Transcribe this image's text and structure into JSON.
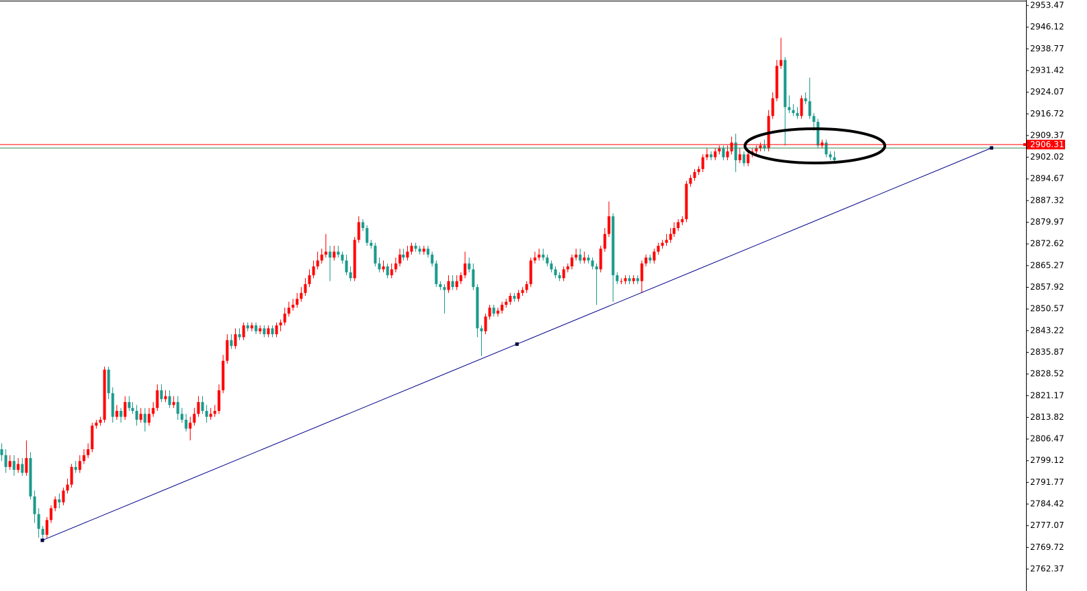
{
  "chart_data": {
    "type": "candlestick",
    "up_color": "#ff0000",
    "down_color": "#1a9a8c",
    "xlim": [
      -0.33,
      249.8
    ],
    "ylim": [
      2757.49,
      2955.33
    ],
    "yticks": [
      2953.47,
      2946.12,
      2938.77,
      2931.42,
      2924.07,
      2916.72,
      2909.37,
      2902.02,
      2894.67,
      2887.32,
      2879.97,
      2872.62,
      2865.27,
      2857.92,
      2850.57,
      2843.22,
      2835.87,
      2828.52,
      2821.17,
      2813.82,
      2806.47,
      2799.12,
      2791.77,
      2784.42,
      2777.07,
      2769.72,
      2762.37
    ],
    "open": [
      2803,
      2801,
      2797,
      2799,
      2796,
      2798,
      2795,
      2800,
      2787,
      2781,
      2776,
      2774,
      2779,
      2783,
      2786,
      2785,
      2789,
      2791,
      2797,
      2796,
      2799,
      2801,
      2803,
      2811,
      2812,
      2813,
      2830,
      2822,
      2814,
      2816,
      2814,
      2819,
      2817,
      2816,
      2813,
      2815,
      2812,
      2815,
      2817,
      2823,
      2820,
      2821,
      2818,
      2819,
      2815,
      2813,
      2810,
      2812,
      2815,
      2819,
      2816,
      2814,
      2815,
      2816,
      2823,
      2833,
      2840,
      2838,
      2842,
      2841,
      2845,
      2844,
      2845,
      2843,
      2844,
      2842,
      2844,
      2842,
      2845,
      2846,
      2849,
      2851,
      2852,
      2854,
      2856,
      2859,
      2862,
      2865,
      2867,
      2869,
      2870,
      2868,
      2870,
      2869,
      2867,
      2863,
      2861,
      2874,
      2880,
      2878,
      2873,
      2872,
      2866,
      2864,
      2865,
      2862,
      2864,
      2866,
      2869,
      2868,
      2870,
      2872,
      2871,
      2870,
      2871,
      2869,
      2866,
      2859,
      2858,
      2857,
      2860,
      2858,
      2860,
      2862,
      2866,
      2864,
      2858,
      2844,
      2843,
      2848,
      2851,
      2849,
      2850,
      2852,
      2853,
      2855,
      2854,
      2856,
      2857,
      2859,
      2867,
      2868,
      2869,
      2868,
      2866,
      2864,
      2862,
      2861,
      2864,
      2865,
      2868,
      2869,
      2867,
      2868,
      2867,
      2865,
      2864,
      2871,
      2876,
      2882,
      2862,
      2860,
      2860,
      2861,
      2860,
      2861,
      2860,
      2866,
      2868,
      2867,
      2870,
      2872,
      2873,
      2874,
      2876,
      2878,
      2880,
      2881,
      2893,
      2895,
      2897,
      2898,
      2902,
      2903,
      2902,
      2904,
      2905,
      2902,
      2904,
      2907,
      2901,
      2903,
      2900,
      2903,
      2904,
      2905,
      2906,
      2905,
      2916,
      2922,
      2933,
      2935,
      2919,
      2918,
      2917,
      2916,
      2922,
      2921,
      2916,
      2914,
      2906,
      2907,
      2903,
      2902
    ],
    "high": [
      2805,
      2803,
      2801,
      2801,
      2800,
      2800,
      2806,
      2802,
      2789,
      2783,
      2777,
      2780,
      2784,
      2787,
      2788,
      2790,
      2793,
      2798,
      2799,
      2801,
      2803,
      2805,
      2812,
      2813,
      2814,
      2831,
      2831,
      2824,
      2818,
      2817,
      2821,
      2821,
      2819,
      2818,
      2817,
      2817,
      2817,
      2819,
      2825,
      2825,
      2823,
      2823,
      2821,
      2821,
      2817,
      2815,
      2814,
      2817,
      2821,
      2821,
      2818,
      2817,
      2818,
      2825,
      2835,
      2842,
      2842,
      2844,
      2844,
      2846,
      2846,
      2846,
      2846,
      2845,
      2845,
      2845,
      2845,
      2846,
      2847,
      2851,
      2853,
      2854,
      2856,
      2858,
      2861,
      2864,
      2867,
      2870,
      2871,
      2876,
      2872,
      2872,
      2872,
      2870,
      2869,
      2865,
      2875,
      2882,
      2881,
      2879,
      2874,
      2873,
      2868,
      2867,
      2866,
      2866,
      2868,
      2871,
      2871,
      2872,
      2873,
      2873,
      2872,
      2872,
      2872,
      2870,
      2867,
      2860,
      2859,
      2862,
      2862,
      2862,
      2863,
      2870,
      2868,
      2866,
      2859,
      2845,
      2849,
      2852,
      2852,
      2851,
      2853,
      2854,
      2856,
      2856,
      2857,
      2858,
      2860,
      2868,
      2870,
      2871,
      2871,
      2869,
      2867,
      2865,
      2863,
      2865,
      2866,
      2869,
      2871,
      2871,
      2870,
      2869,
      2868,
      2866,
      2872,
      2878,
      2887,
      2883,
      2863,
      2861,
      2862,
      2862,
      2862,
      2862,
      2867,
      2869,
      2869,
      2871,
      2873,
      2874,
      2876,
      2878,
      2880,
      2881,
      2882,
      2894,
      2896,
      2898,
      2899,
      2903,
      2905,
      2904,
      2905,
      2906,
      2906,
      2906,
      2909,
      2910,
      2905,
      2904,
      2904,
      2905,
      2906,
      2907,
      2908,
      2918,
      2924,
      2935,
      2942.5,
      2936,
      2923,
      2920,
      2919,
      2923,
      2924,
      2929,
      2917,
      2915,
      2908,
      2908,
      2904,
      2904
    ],
    "low": [
      2799,
      2795,
      2796,
      2794,
      2795,
      2794,
      2794,
      2786,
      2778,
      2773,
      2772,
      2773,
      2778,
      2782,
      2783,
      2784,
      2788,
      2790,
      2795,
      2795,
      2798,
      2800,
      2802,
      2810,
      2811,
      2812,
      2820,
      2812,
      2813,
      2812,
      2813,
      2816,
      2815,
      2811,
      2812,
      2809,
      2811,
      2814,
      2816,
      2819,
      2819,
      2817,
      2817,
      2813,
      2812,
      2809,
      2806,
      2811,
      2814,
      2815,
      2812,
      2813,
      2814,
      2815,
      2822,
      2832,
      2837,
      2837,
      2840,
      2840,
      2843,
      2843,
      2842,
      2842,
      2841,
      2841,
      2841,
      2841,
      2843,
      2845,
      2848,
      2850,
      2851,
      2853,
      2855,
      2858,
      2861,
      2864,
      2866,
      2868,
      2860,
      2867,
      2868,
      2866,
      2862,
      2860,
      2860,
      2873,
      2877,
      2872,
      2871,
      2865,
      2863,
      2863,
      2861,
      2861,
      2863,
      2865,
      2867,
      2867,
      2869,
      2870,
      2869,
      2869,
      2868,
      2865,
      2858,
      2857,
      2849,
      2856,
      2857,
      2857,
      2859,
      2861,
      2863,
      2857,
      2841,
      2834.6,
      2842,
      2847,
      2848,
      2848,
      2849,
      2851,
      2852,
      2853,
      2853,
      2855,
      2856,
      2858,
      2866,
      2867,
      2867,
      2865,
      2863,
      2861,
      2860,
      2860,
      2863,
      2864,
      2867,
      2866,
      2866,
      2866,
      2864,
      2852,
      2863,
      2870,
      2875,
      2853,
      2859,
      2859,
      2859,
      2859,
      2859,
      2859,
      2856,
      2865,
      2866,
      2866,
      2869,
      2871,
      2872,
      2873,
      2875,
      2877,
      2879,
      2880,
      2892,
      2894,
      2896,
      2897,
      2901,
      2901,
      2901,
      2903,
      2901,
      2901,
      2903,
      2897,
      2900,
      2899,
      2899,
      2902,
      2903,
      2904,
      2904,
      2904,
      2915,
      2921,
      2932,
      2906,
      2917,
      2916,
      2915,
      2915,
      2920,
      2915,
      2911,
      2905,
      2905,
      2902,
      2901,
      2900
    ],
    "close": [
      2801,
      2797,
      2799,
      2796,
      2798,
      2795,
      2800,
      2787,
      2781,
      2776,
      2774,
      2779,
      2783,
      2786,
      2785,
      2789,
      2791,
      2797,
      2796,
      2799,
      2801,
      2803,
      2811,
      2812,
      2813,
      2830,
      2822,
      2814,
      2816,
      2814,
      2819,
      2817,
      2816,
      2813,
      2815,
      2812,
      2815,
      2817,
      2823,
      2820,
      2821,
      2818,
      2819,
      2815,
      2813,
      2810,
      2812,
      2815,
      2819,
      2816,
      2814,
      2815,
      2816,
      2823,
      2833,
      2840,
      2838,
      2842,
      2841,
      2845,
      2844,
      2845,
      2843,
      2844,
      2842,
      2844,
      2842,
      2845,
      2846,
      2849,
      2851,
      2852,
      2854,
      2856,
      2859,
      2862,
      2865,
      2867,
      2869,
      2870,
      2868,
      2870,
      2869,
      2867,
      2863,
      2861,
      2874,
      2880,
      2878,
      2873,
      2872,
      2866,
      2864,
      2865,
      2862,
      2864,
      2866,
      2869,
      2868,
      2870,
      2872,
      2871,
      2870,
      2871,
      2869,
      2866,
      2859,
      2858,
      2857,
      2860,
      2858,
      2860,
      2862,
      2866,
      2864,
      2858,
      2844,
      2843,
      2848,
      2851,
      2849,
      2850,
      2852,
      2853,
      2855,
      2854,
      2856,
      2857,
      2859,
      2867,
      2868,
      2869,
      2868,
      2866,
      2864,
      2862,
      2861,
      2864,
      2865,
      2868,
      2869,
      2867,
      2868,
      2867,
      2865,
      2864,
      2871,
      2876,
      2882,
      2862,
      2860,
      2860,
      2861,
      2860,
      2861,
      2860,
      2866,
      2868,
      2867,
      2870,
      2872,
      2873,
      2874,
      2876,
      2878,
      2880,
      2881,
      2893,
      2895,
      2897,
      2898,
      2902,
      2903,
      2902,
      2904,
      2905,
      2902,
      2904,
      2907,
      2901,
      2903,
      2900,
      2903,
      2904,
      2905,
      2906,
      2905,
      2916,
      2922,
      2933,
      2935,
      2919,
      2918,
      2917,
      2916,
      2922,
      2921,
      2916,
      2914,
      2906,
      2907,
      2903,
      2902,
      2901
    ],
    "bid_line": {
      "value": 2906.31,
      "color": "#ff0000"
    },
    "ask_line": {
      "value": 2905.15,
      "color": "#2e8b57"
    },
    "trendline": {
      "x": [
        10,
        241.4
      ],
      "y": [
        2772.13,
        2905.17
      ],
      "color": "#00008b"
    }
  }
}
